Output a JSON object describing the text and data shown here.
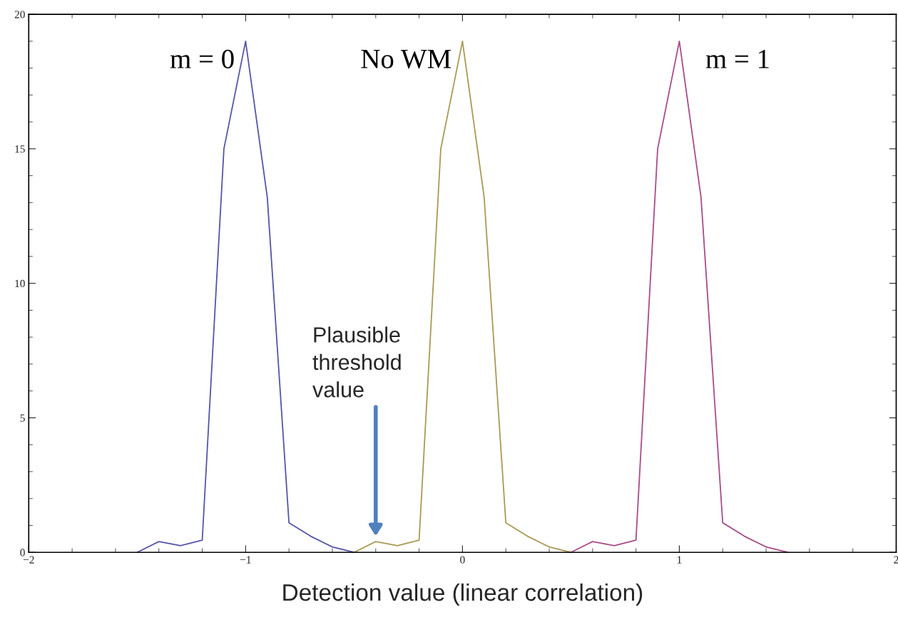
{
  "chart_data": {
    "type": "line",
    "xlabel": "Detection value (linear correlation)",
    "xlim": [
      -2,
      2
    ],
    "xticks": [
      -2,
      -1,
      0,
      1,
      2
    ],
    "ylim": [
      0,
      20
    ],
    "yticks": [
      0,
      5,
      10,
      15,
      20
    ],
    "grid": false,
    "legend": false,
    "marker": "none",
    "line_style": "solid",
    "series": [
      {
        "name": "m = 0",
        "color": "#5555aa",
        "x": [
          -1.5,
          -1.4,
          -1.3,
          -1.2,
          -1.1,
          -1.0,
          -0.9,
          -0.8,
          -0.7,
          -0.6,
          -0.5
        ],
        "values": [
          0,
          0.4,
          0.25,
          0.45,
          15,
          19,
          13.2,
          1.1,
          0.6,
          0.2,
          0
        ]
      },
      {
        "name": "No WM",
        "color": "#aa9a55",
        "x": [
          -0.5,
          -0.4,
          -0.3,
          -0.2,
          -0.1,
          0.0,
          0.1,
          0.2,
          0.3,
          0.4,
          0.5
        ],
        "values": [
          0,
          0.4,
          0.25,
          0.45,
          15,
          19,
          13.2,
          1.1,
          0.6,
          0.2,
          0
        ]
      },
      {
        "name": "m = 1",
        "color": "#a84d8a",
        "x": [
          0.5,
          0.6,
          0.7,
          0.8,
          0.9,
          1.0,
          1.1,
          1.2,
          1.3,
          1.4,
          1.5
        ],
        "values": [
          0,
          0.4,
          0.25,
          0.45,
          15,
          19,
          13.2,
          1.1,
          0.6,
          0.2,
          0
        ]
      }
    ],
    "annotations": [
      "Plausible\nthreshold\nvalue"
    ]
  }
}
